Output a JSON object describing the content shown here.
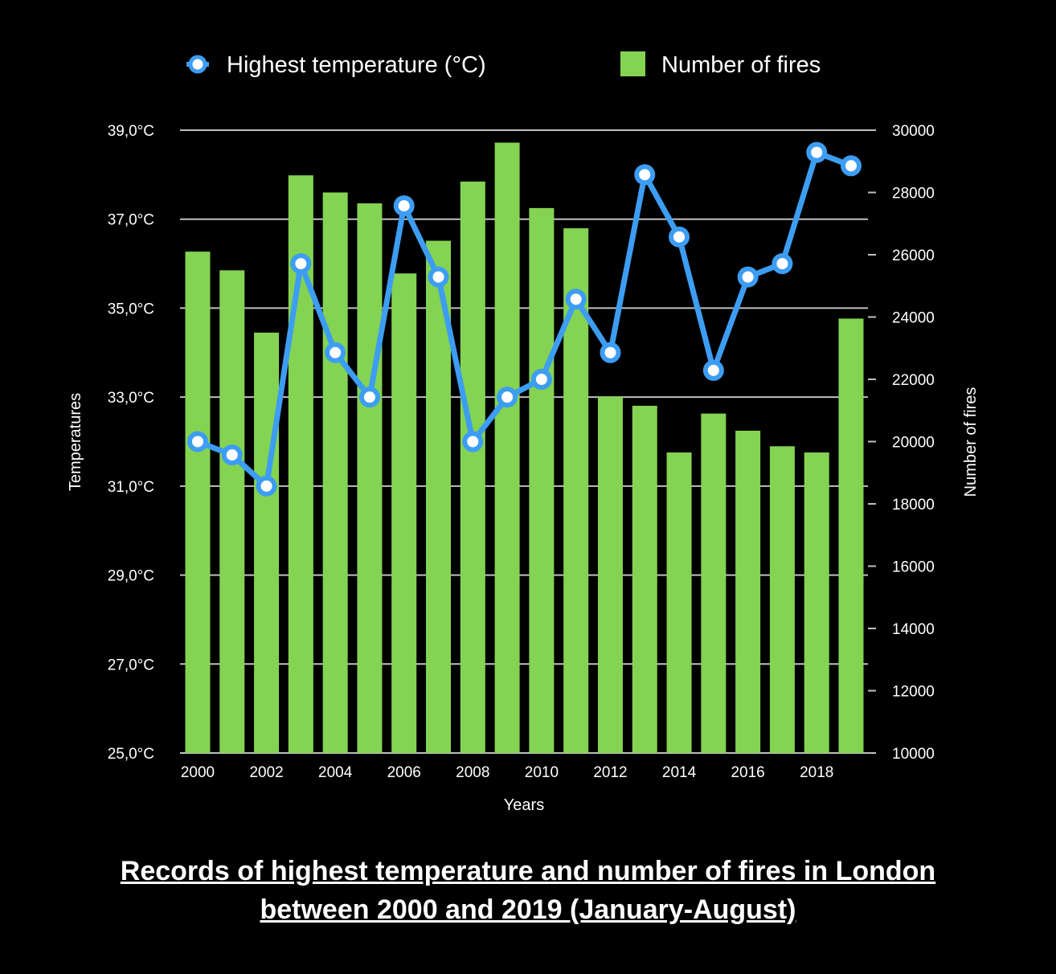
{
  "chart_data": {
    "type": "bar",
    "caption_lines": [
      "Records of highest temperature and number of fires in London",
      "between 2000 and 2019 (January-August)"
    ],
    "xlabel": "Years",
    "ylabel_left": "Temperatures",
    "ylabel_right": "Number of fires",
    "x": [
      2000,
      2001,
      2002,
      2003,
      2004,
      2005,
      2006,
      2007,
      2008,
      2009,
      2010,
      2011,
      2012,
      2013,
      2014,
      2015,
      2016,
      2017,
      2018,
      2019
    ],
    "x_tick_labels": [
      "2000",
      "2002",
      "2004",
      "2006",
      "2008",
      "2010",
      "2012",
      "2014",
      "2016",
      "2018"
    ],
    "y_left_ticks": [
      "25,0°C",
      "27,0°C",
      "29,0°C",
      "31,0°C",
      "33,0°C",
      "35,0°C",
      "37,0°C",
      "39,0°C"
    ],
    "y_right_ticks": [
      "10000",
      "12000",
      "14000",
      "16000",
      "18000",
      "20000",
      "22000",
      "24000",
      "26000",
      "28000",
      "30000"
    ],
    "ylim_left": [
      25,
      39
    ],
    "ylim_right": [
      10000,
      30000
    ],
    "legend_position": "top-center",
    "grid": true,
    "series": [
      {
        "name": "Highest temperature (°C)",
        "kind": "line",
        "axis": "left",
        "color": "#3d9df3",
        "values": [
          32.0,
          31.7,
          31.0,
          36.0,
          34.0,
          33.0,
          37.3,
          35.7,
          32.0,
          33.0,
          33.4,
          35.2,
          34.0,
          38.0,
          36.6,
          33.6,
          35.7,
          36.0,
          38.5,
          38.2
        ]
      },
      {
        "name": "Number of fires",
        "kind": "bar",
        "axis": "right",
        "color": "#84d352",
        "values": [
          26100,
          25500,
          23500,
          28550,
          28000,
          27650,
          25400,
          26450,
          28350,
          29600,
          27500,
          26850,
          21450,
          21150,
          19650,
          20900,
          20350,
          19850,
          19650,
          23950
        ]
      }
    ]
  }
}
